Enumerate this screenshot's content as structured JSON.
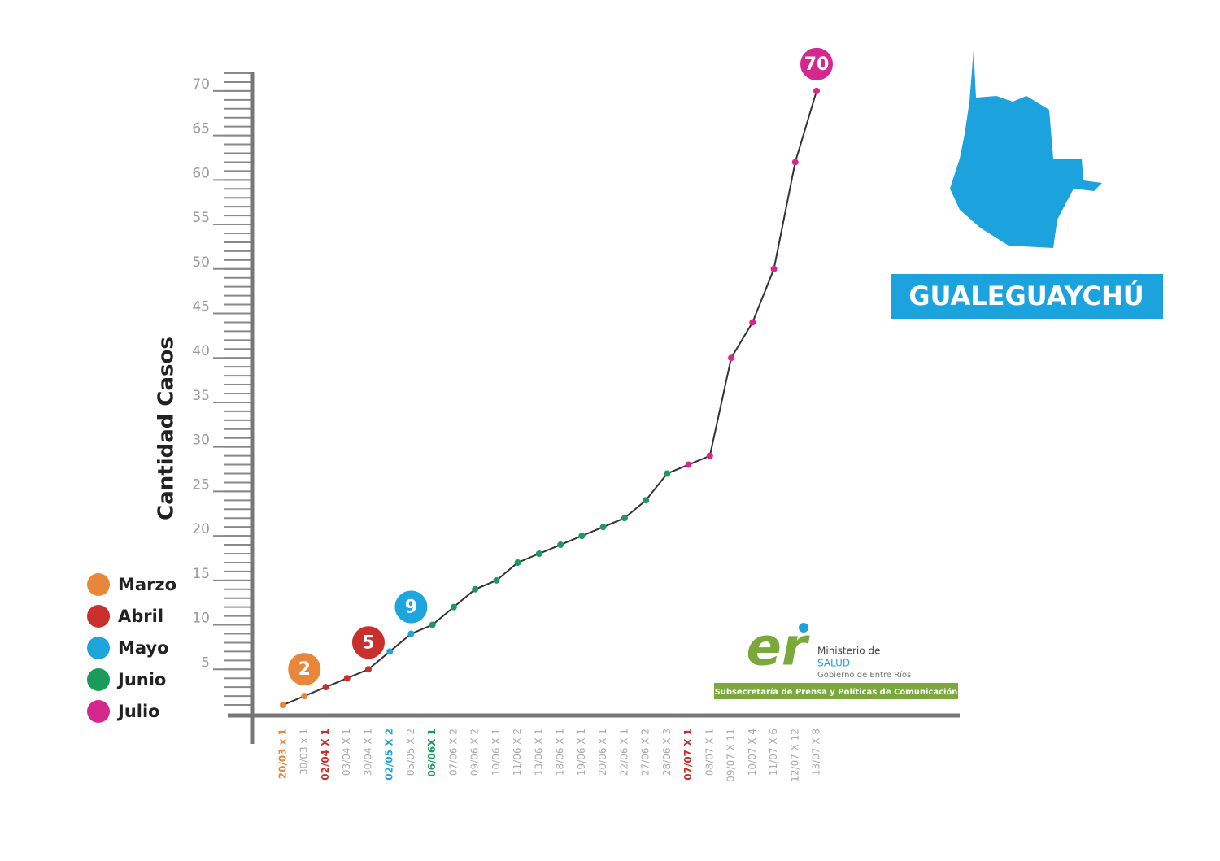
{
  "chart_data": {
    "type": "line",
    "y_label": "Cantidad Casos",
    "categories": [
      "20/03 x 1",
      "30/03 x 1",
      "02/04 X 1",
      "03/04 X 1",
      "30/04 X 1",
      "02/05 X 2",
      "05/05 X 2",
      "06/06X 1",
      "07/06 X 2",
      "09/06 X 2",
      "10/06 X 1",
      "11/06 X 2",
      "13/06 X 1",
      "18/06 X 1",
      "19/06 X 1",
      "20/06 X 1",
      "22/06 X 1",
      "27/06 X 2",
      "28/06 X 3",
      "07/07 X 1",
      "08/07 X 1",
      "09/07 X 11",
      "10/07 X 4",
      "11/07 X 6",
      "12/07 X 12",
      "13/07 X 8"
    ],
    "category_colors": [
      "#e8873a",
      "#aaa",
      "#c9302c",
      "#aaa",
      "#aaa",
      "#1ea5dc",
      "#aaa",
      "#1a9b5c",
      "#aaa",
      "#aaa",
      "#aaa",
      "#aaa",
      "#aaa",
      "#aaa",
      "#aaa",
      "#aaa",
      "#aaa",
      "#aaa",
      "#aaa",
      "#c9302c",
      "#aaa",
      "#aaa",
      "#aaa",
      "#aaa",
      "#aaa",
      "#aaa"
    ],
    "series": [
      {
        "name": "Casos",
        "color": "#333",
        "values": [
          1,
          2,
          3,
          4,
          5,
          7,
          9,
          10,
          12,
          14,
          15,
          17,
          18,
          19,
          20,
          21,
          22,
          24,
          27,
          28,
          29,
          40,
          44,
          50,
          62,
          70
        ],
        "point_colors": [
          "#e8873a",
          "#e8873a",
          "#c9302c",
          "#c9302c",
          "#c9302c",
          "#1ea5dc",
          "#1ea5dc",
          "#1a9b5c",
          "#1a9b5c",
          "#1a9b5c",
          "#1a9b5c",
          "#1a9b5c",
          "#1a9b5c",
          "#1a9b5c",
          "#1a9b5c",
          "#1a9b5c",
          "#1a9b5c",
          "#1a9b5c",
          "#1a9b5c",
          "#d6278f",
          "#d6278f",
          "#d6278f",
          "#d6278f",
          "#d6278f",
          "#d6278f",
          "#d6278f"
        ],
        "value_labels": [
          null,
          "2",
          null,
          null,
          "5",
          null,
          "9",
          null,
          null,
          null,
          null,
          null,
          null,
          null,
          null,
          null,
          null,
          null,
          null,
          null,
          null,
          null,
          null,
          null,
          null,
          "70"
        ]
      }
    ],
    "ylim": [
      0,
      72
    ],
    "yticks": [
      5,
      10,
      15,
      20,
      25,
      30,
      35,
      40,
      45,
      50,
      55,
      60,
      65,
      70
    ],
    "legend": [
      {
        "name": "Marzo",
        "color": "#e8873a"
      },
      {
        "name": "Abril",
        "color": "#c9302c"
      },
      {
        "name": "Mayo",
        "color": "#1ea5dc"
      },
      {
        "name": "Junio",
        "color": "#1a9b5c"
      },
      {
        "name": "Julio",
        "color": "#d6278f"
      }
    ],
    "region": "GUALEGUAYCHÚ",
    "logo": {
      "mark": "er",
      "line1": "Ministerio de",
      "line2": "SALUD",
      "line3": "Gobierno de Entre Ríos",
      "banner": "Subsecretaría de Prensa y Políticas de Comunicación"
    }
  }
}
